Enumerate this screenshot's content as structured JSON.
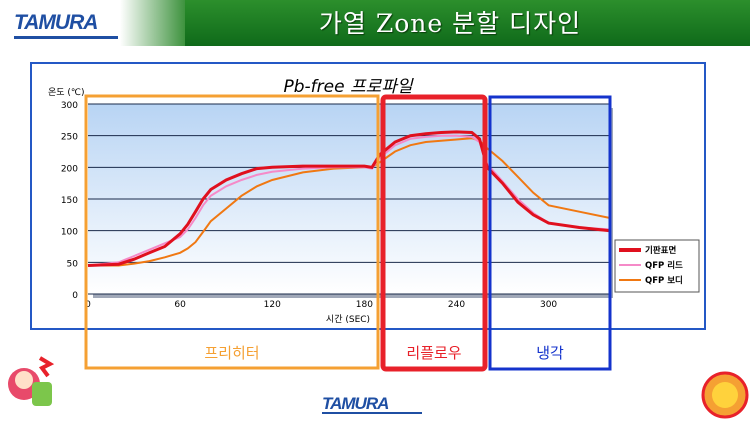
{
  "header": {
    "logo": "TAMURA",
    "title": "가열 Zone 분할 디자인"
  },
  "footer": {
    "logo": "TAMURA"
  },
  "zones": [
    {
      "label": "프리히터",
      "color": "#f5a033"
    },
    {
      "label": "리플로우",
      "color": "#e8212a"
    },
    {
      "label": "냉각",
      "color": "#1433cc"
    }
  ],
  "colors": {
    "frame": "#2458c5",
    "grid": "#1a2a4a",
    "plot_top": "#b8d4f4",
    "plot_bottom": "#ffffff"
  },
  "chart_data": {
    "type": "line",
    "title": "Pb-free 프로파일",
    "xlabel": "시간 (SEC)",
    "ylabel": "온도 (℃)",
    "xlim": [
      0,
      340
    ],
    "ylim": [
      0,
      300
    ],
    "xticks": [
      0,
      60,
      120,
      180,
      240,
      300
    ],
    "yticks": [
      0,
      50,
      100,
      150,
      200,
      250,
      300
    ],
    "series": [
      {
        "name": "기판표면",
        "color": "#e0101e",
        "x": [
          0,
          20,
          30,
          40,
          50,
          60,
          65,
          70,
          75,
          80,
          90,
          100,
          110,
          120,
          140,
          160,
          180,
          185,
          190,
          200,
          210,
          220,
          230,
          240,
          250,
          255,
          260,
          270,
          280,
          290,
          300,
          320,
          340
        ],
        "y": [
          45,
          47,
          55,
          65,
          75,
          95,
          110,
          130,
          150,
          165,
          180,
          190,
          198,
          200,
          202,
          202,
          202,
          200,
          220,
          240,
          250,
          253,
          255,
          256,
          255,
          245,
          200,
          175,
          145,
          125,
          112,
          105,
          100
        ]
      },
      {
        "name": "QFP 리드",
        "color": "#f58ac8",
        "x": [
          0,
          20,
          30,
          40,
          50,
          60,
          65,
          70,
          75,
          80,
          90,
          100,
          110,
          120,
          140,
          160,
          180,
          185,
          190,
          200,
          210,
          220,
          230,
          240,
          250,
          255,
          260,
          270,
          280,
          290,
          300,
          320,
          340
        ],
        "y": [
          45,
          50,
          60,
          70,
          80,
          90,
          102,
          120,
          140,
          155,
          170,
          180,
          188,
          193,
          198,
          200,
          200,
          198,
          215,
          235,
          245,
          248,
          250,
          250,
          248,
          240,
          205,
          178,
          150,
          128,
          112,
          105,
          102
        ]
      },
      {
        "name": "QFP 보디",
        "color": "#f07812",
        "x": [
          0,
          20,
          30,
          40,
          50,
          60,
          65,
          70,
          75,
          80,
          90,
          100,
          110,
          120,
          140,
          160,
          180,
          185,
          190,
          200,
          210,
          220,
          230,
          240,
          250,
          255,
          260,
          270,
          280,
          290,
          300,
          320,
          340
        ],
        "y": [
          45,
          45,
          48,
          52,
          58,
          65,
          72,
          82,
          98,
          115,
          135,
          155,
          170,
          180,
          192,
          198,
          200,
          200,
          208,
          225,
          235,
          240,
          242,
          244,
          246,
          242,
          230,
          210,
          185,
          160,
          140,
          130,
          120
        ]
      }
    ]
  }
}
